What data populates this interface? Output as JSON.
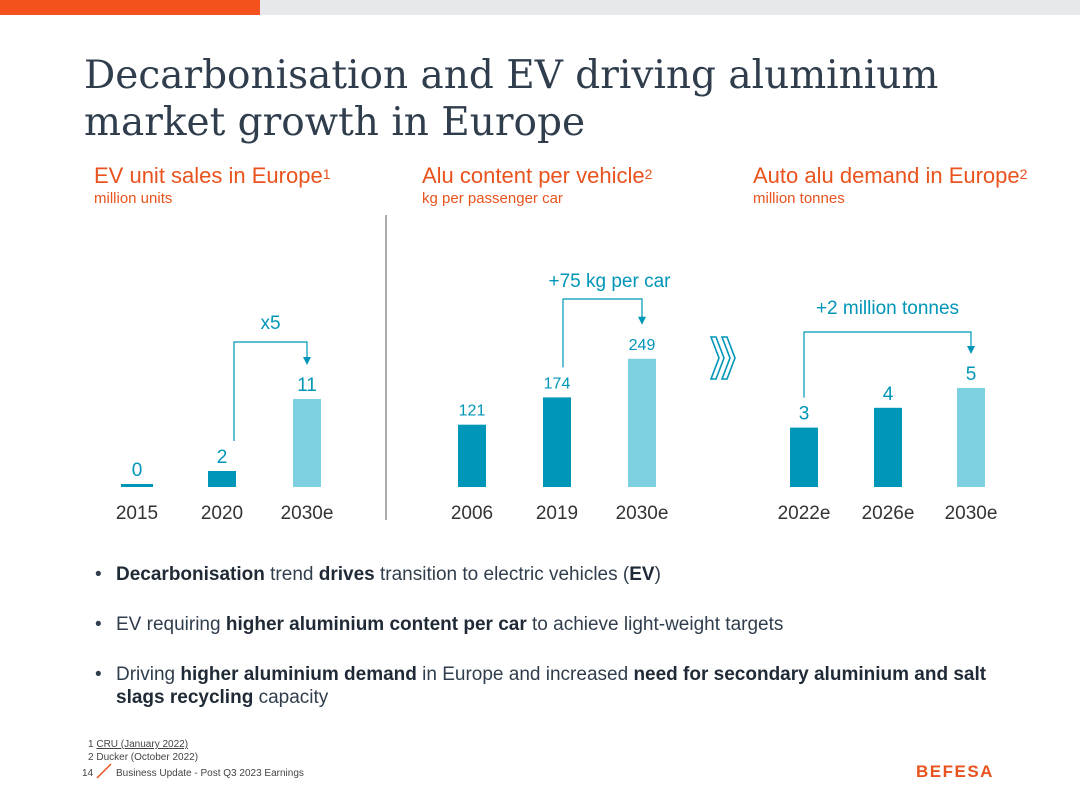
{
  "slide": {
    "title_line1": "Decarbonisation and EV driving aluminium",
    "title_line2": "market growth in Europe"
  },
  "colors": {
    "accent": "#e8531e",
    "bar_dark": "#0096b8",
    "bar_light": "#7dd0e0",
    "arrow": "#0096b8"
  },
  "chart_data": [
    {
      "type": "bar",
      "title": "EV unit sales in Europe",
      "title_sup": "1",
      "subtitle": "million units",
      "categories": [
        "2015",
        "2020",
        "2030e"
      ],
      "values": [
        0,
        2,
        11
      ],
      "labels": [
        "0",
        "2",
        "11"
      ],
      "annotation": "x5",
      "annotation_from": 1,
      "annotation_to": 2
    },
    {
      "type": "bar",
      "title": "Alu content per vehicle",
      "title_sup": "2",
      "subtitle": "kg per passenger car",
      "categories": [
        "2006",
        "2019",
        "2030e"
      ],
      "values": [
        121,
        174,
        249
      ],
      "labels": [
        "121",
        "174",
        "249"
      ],
      "annotation": "+75 kg per car",
      "annotation_from": 1,
      "annotation_to": 2
    },
    {
      "type": "bar",
      "title": "Auto alu demand in Europe",
      "title_sup": "2",
      "subtitle": "million tonnes",
      "categories": [
        "2022e",
        "2026e",
        "2030e"
      ],
      "values": [
        3,
        4,
        5
      ],
      "labels": [
        "3",
        "4",
        "5"
      ],
      "annotation": "+2 million tonnes",
      "annotation_from": 0,
      "annotation_to": 2
    }
  ],
  "bullets": [
    [
      {
        "t": "Decarbonisation",
        "b": true
      },
      {
        "t": " trend ",
        "b": false
      },
      {
        "t": "drives",
        "b": true
      },
      {
        "t": " transition to electric vehicles (",
        "b": false
      },
      {
        "t": "EV",
        "b": true
      },
      {
        "t": ")",
        "b": false
      }
    ],
    [
      {
        "t": "EV requiring ",
        "b": false
      },
      {
        "t": "higher aluminium content per car",
        "b": true
      },
      {
        "t": " to achieve light-weight targets",
        "b": false
      }
    ],
    [
      {
        "t": "Driving ",
        "b": false
      },
      {
        "t": "higher aluminium demand",
        "b": true
      },
      {
        "t": " in Europe and increased ",
        "b": false
      },
      {
        "t": "need for secondary aluminium and salt slags recycling",
        "b": true
      },
      {
        "t": " capacity",
        "b": false
      }
    ]
  ],
  "footnotes": {
    "n1": "1",
    "ref1": "CRU (January 2022)",
    "n2": "2",
    "ref2": "Ducker (October 2022)"
  },
  "footer": {
    "page_number": "14",
    "text": "Business Update - Post Q3 2023 Earnings",
    "logo": "BEFESA"
  }
}
